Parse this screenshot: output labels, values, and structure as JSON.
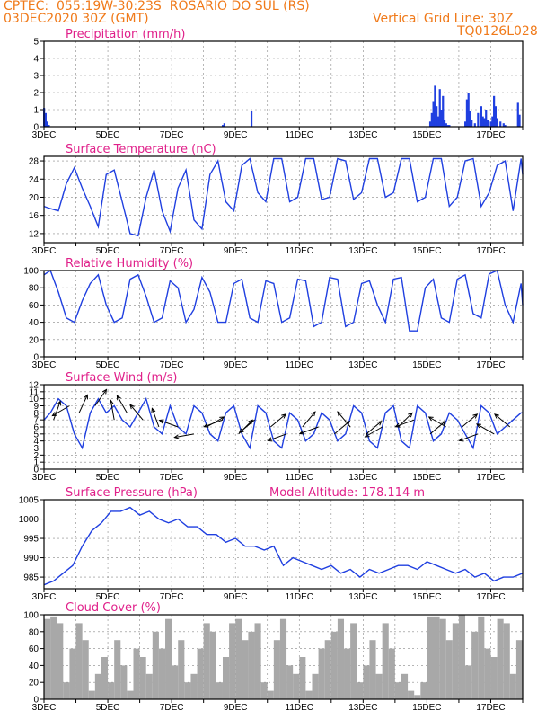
{
  "header": {
    "line1": "CPTEC:  055:19W-30:23S  ROSARIO DO SUL (RS)",
    "line2": "03DEC2020 30Z (GMT)",
    "grid_note": "Vertical Grid Line: 30Z",
    "code": "TQ0126L028"
  },
  "colors": {
    "header": "#f07a1a",
    "title": "#e0208a",
    "line": "#1f3fe0",
    "bar": "#1f3fe0",
    "cloud": "#a8a8a8"
  },
  "x_axis": {
    "labels": [
      "3DEC",
      "5DEC",
      "7DEC",
      "9DEC",
      "11DEC",
      "13DEC",
      "15DEC",
      "17DEC"
    ],
    "start_day": 3,
    "end_day": 18
  },
  "chart_data": [
    {
      "id": "precip",
      "type": "bar",
      "title": "Precipitation (mm/h)",
      "ylim": [
        0,
        5
      ],
      "yticks": [
        0,
        1,
        2,
        3,
        4,
        5
      ],
      "x": [
        3.0,
        3.05,
        3.1,
        3.15,
        8.6,
        8.65,
        9.5,
        15.1,
        15.15,
        15.2,
        15.25,
        15.3,
        15.35,
        15.4,
        15.45,
        15.5,
        15.55,
        15.6,
        15.65,
        15.7,
        16.2,
        16.25,
        16.3,
        16.35,
        16.4,
        16.5,
        16.6,
        16.7,
        16.75,
        16.8,
        16.85,
        16.9,
        17.0,
        17.05,
        17.1,
        17.15,
        17.2,
        17.3,
        17.4,
        17.45,
        17.85,
        17.9
      ],
      "values": [
        1.1,
        0.8,
        0.3,
        0.1,
        0.1,
        0.2,
        0.9,
        0.3,
        0.8,
        1.5,
        2.4,
        1.2,
        0.6,
        2.2,
        1.0,
        1.8,
        0.4,
        0.2,
        0.1,
        0.1,
        0.3,
        1.6,
        2.0,
        0.9,
        0.4,
        0.2,
        0.8,
        1.2,
        0.6,
        0.5,
        1.0,
        0.4,
        0.3,
        0.6,
        1.8,
        1.2,
        0.5,
        0.3,
        0.2,
        0.1,
        1.4,
        0.7
      ]
    },
    {
      "id": "temp",
      "type": "line",
      "title": "Surface Temperature (nC)",
      "ylim": [
        10,
        29
      ],
      "yticks": [
        12,
        16,
        20,
        24,
        28
      ],
      "x": [
        3.0,
        3.2,
        3.45,
        3.7,
        3.95,
        4.2,
        4.45,
        4.7,
        4.95,
        5.2,
        5.45,
        5.7,
        5.95,
        6.2,
        6.45,
        6.7,
        6.95,
        7.2,
        7.45,
        7.7,
        7.95,
        8.2,
        8.45,
        8.7,
        8.95,
        9.2,
        9.45,
        9.7,
        9.95,
        10.2,
        10.45,
        10.7,
        10.95,
        11.2,
        11.45,
        11.7,
        11.95,
        12.2,
        12.45,
        12.7,
        12.95,
        13.2,
        13.45,
        13.7,
        13.95,
        14.2,
        14.45,
        14.7,
        14.95,
        15.2,
        15.45,
        15.7,
        15.95,
        16.2,
        16.45,
        16.7,
        16.95,
        17.2,
        17.45,
        17.7,
        17.95,
        18.0
      ],
      "values": [
        18,
        17.5,
        17,
        23,
        26.5,
        22,
        18,
        13.5,
        25,
        26,
        19,
        12,
        11.5,
        20,
        26,
        17,
        12.5,
        22,
        26,
        15,
        13,
        25,
        28,
        19,
        17,
        27,
        28.5,
        21,
        19,
        28.5,
        28.5,
        19,
        20,
        28.5,
        28.5,
        19.5,
        20,
        28.5,
        28,
        19.5,
        21,
        28.5,
        28.5,
        20,
        21,
        28.5,
        28.5,
        19,
        20,
        28.5,
        28.5,
        18,
        20,
        28,
        28.5,
        18,
        21,
        27,
        28,
        17,
        28.5,
        25
      ]
    },
    {
      "id": "rh",
      "type": "line",
      "title": "Relative Humidity (%)",
      "ylim": [
        0,
        100
      ],
      "yticks": [
        0,
        20,
        40,
        60,
        80,
        100
      ],
      "x": [
        3.0,
        3.2,
        3.45,
        3.7,
        3.95,
        4.2,
        4.45,
        4.7,
        4.95,
        5.2,
        5.45,
        5.7,
        5.95,
        6.2,
        6.45,
        6.7,
        6.95,
        7.2,
        7.45,
        7.7,
        7.95,
        8.2,
        8.45,
        8.7,
        8.95,
        9.2,
        9.45,
        9.7,
        9.95,
        10.2,
        10.45,
        10.7,
        10.95,
        11.2,
        11.45,
        11.7,
        11.95,
        12.2,
        12.45,
        12.7,
        12.95,
        13.2,
        13.45,
        13.7,
        13.95,
        14.2,
        14.45,
        14.7,
        14.95,
        15.2,
        15.45,
        15.7,
        15.95,
        16.2,
        16.45,
        16.7,
        16.95,
        17.2,
        17.45,
        17.7,
        17.95,
        18.0
      ],
      "values": [
        95,
        100,
        75,
        45,
        40,
        65,
        85,
        95,
        60,
        40,
        45,
        90,
        95,
        70,
        40,
        45,
        88,
        80,
        40,
        55,
        92,
        75,
        40,
        40,
        85,
        90,
        45,
        40,
        88,
        85,
        40,
        45,
        90,
        88,
        35,
        40,
        92,
        90,
        35,
        40,
        85,
        88,
        60,
        40,
        90,
        92,
        30,
        30,
        80,
        90,
        45,
        40,
        90,
        95,
        50,
        45,
        96,
        100,
        60,
        40,
        85,
        60
      ]
    },
    {
      "id": "wind",
      "type": "line",
      "title": "Surface Wind (m/s)",
      "ylim": [
        0,
        12
      ],
      "yticks": [
        0,
        1,
        2,
        3,
        4,
        5,
        6,
        7,
        8,
        9,
        10,
        11,
        12
      ],
      "x": [
        3.0,
        3.2,
        3.45,
        3.7,
        3.95,
        4.2,
        4.45,
        4.7,
        4.95,
        5.2,
        5.45,
        5.7,
        5.95,
        6.2,
        6.45,
        6.7,
        6.95,
        7.2,
        7.45,
        7.7,
        7.95,
        8.2,
        8.45,
        8.7,
        8.95,
        9.2,
        9.45,
        9.7,
        9.95,
        10.2,
        10.45,
        10.7,
        10.95,
        11.2,
        11.45,
        11.7,
        11.95,
        12.2,
        12.45,
        12.7,
        12.95,
        13.2,
        13.45,
        13.7,
        13.95,
        14.2,
        14.45,
        14.7,
        14.95,
        15.2,
        15.45,
        15.7,
        15.95,
        16.2,
        16.45,
        16.7,
        16.95,
        17.2,
        17.45,
        17.7,
        17.95,
        18.0
      ],
      "values": [
        7,
        8,
        10,
        9,
        5,
        3,
        8,
        10,
        8,
        9,
        7,
        6,
        8,
        10,
        6,
        5,
        9,
        6,
        5,
        9,
        8,
        5,
        4,
        8,
        9,
        5,
        3,
        9,
        8,
        4,
        3,
        8,
        7,
        4,
        5,
        8,
        7,
        4,
        5,
        9,
        8,
        4,
        3,
        8,
        9,
        4,
        3,
        9,
        8,
        4,
        5,
        8,
        7,
        5,
        3,
        9,
        8,
        5,
        6,
        7,
        8,
        8
      ],
      "arrows": [
        {
          "day": 3.3,
          "speed": 7,
          "dir": 70
        },
        {
          "day": 3.8,
          "speed": 9,
          "dir": 210
        },
        {
          "day": 4.1,
          "speed": 8,
          "dir": 65
        },
        {
          "day": 4.6,
          "speed": 9,
          "dir": 55
        },
        {
          "day": 5.2,
          "speed": 7,
          "dir": 100
        },
        {
          "day": 5.6,
          "speed": 8,
          "dir": 120
        },
        {
          "day": 6.1,
          "speed": 7,
          "dir": 130
        },
        {
          "day": 6.6,
          "speed": 6,
          "dir": 110
        },
        {
          "day": 7.2,
          "speed": 6,
          "dir": 160
        },
        {
          "day": 7.7,
          "speed": 5,
          "dir": 190
        },
        {
          "day": 8.1,
          "speed": 6,
          "dir": 30
        },
        {
          "day": 8.6,
          "speed": 7,
          "dir": 200
        },
        {
          "day": 9.1,
          "speed": 5,
          "dir": 45
        },
        {
          "day": 9.6,
          "speed": 7,
          "dir": 220
        },
        {
          "day": 10.1,
          "speed": 6,
          "dir": 40
        },
        {
          "day": 10.6,
          "speed": 5,
          "dir": 200
        },
        {
          "day": 11.1,
          "speed": 6,
          "dir": 50
        },
        {
          "day": 11.6,
          "speed": 6,
          "dir": 200
        },
        {
          "day": 12.1,
          "speed": 5,
          "dir": 40
        },
        {
          "day": 12.6,
          "speed": 6,
          "dir": 130
        },
        {
          "day": 13.1,
          "speed": 5,
          "dir": 40
        },
        {
          "day": 13.6,
          "speed": 6,
          "dir": 210
        },
        {
          "day": 14.1,
          "speed": 6,
          "dir": 45
        },
        {
          "day": 14.6,
          "speed": 7,
          "dir": 200
        },
        {
          "day": 15.1,
          "speed": 5,
          "dir": 40
        },
        {
          "day": 15.6,
          "speed": 6,
          "dir": 150
        },
        {
          "day": 16.1,
          "speed": 6,
          "dir": 40
        },
        {
          "day": 16.6,
          "speed": 5,
          "dir": 200
        },
        {
          "day": 17.1,
          "speed": 5,
          "dir": 150
        },
        {
          "day": 17.6,
          "speed": 6,
          "dir": 140
        }
      ]
    },
    {
      "id": "pres",
      "type": "line",
      "title": "Surface Pressure (hPa)",
      "note": "Model Altitude: 178.114 m",
      "ylim": [
        982,
        1005
      ],
      "yticks": [
        985,
        990,
        995,
        1000,
        1005
      ],
      "x": [
        3.0,
        3.3,
        3.6,
        3.9,
        4.2,
        4.5,
        4.8,
        5.1,
        5.4,
        5.7,
        6.0,
        6.3,
        6.6,
        6.9,
        7.2,
        7.5,
        7.8,
        8.1,
        8.4,
        8.7,
        9.0,
        9.3,
        9.6,
        9.9,
        10.2,
        10.5,
        10.8,
        11.1,
        11.4,
        11.7,
        12.0,
        12.3,
        12.6,
        12.9,
        13.2,
        13.5,
        13.8,
        14.1,
        14.4,
        14.7,
        15.0,
        15.3,
        15.6,
        15.9,
        16.2,
        16.5,
        16.8,
        17.1,
        17.4,
        17.7,
        18.0
      ],
      "values": [
        983,
        984,
        986,
        988,
        993,
        997,
        999,
        1002,
        1002,
        1003,
        1001,
        1002,
        1000,
        999,
        1000,
        998,
        998,
        996,
        996,
        994,
        995,
        993,
        993,
        992,
        993,
        988,
        990,
        989,
        988,
        987,
        988,
        986,
        987,
        985,
        987,
        986,
        987,
        988,
        988,
        987,
        989,
        988,
        987,
        986,
        987,
        985,
        986,
        984,
        985,
        985,
        986
      ]
    },
    {
      "id": "cloud",
      "type": "area",
      "title": "Cloud Cover (%)",
      "ylim": [
        0,
        100
      ],
      "yticks": [
        0,
        20,
        40,
        60,
        80,
        100
      ],
      "x": [
        3.0,
        3.2,
        3.4,
        3.6,
        3.8,
        4.0,
        4.2,
        4.4,
        4.6,
        4.8,
        5.0,
        5.2,
        5.4,
        5.6,
        5.8,
        6.0,
        6.2,
        6.4,
        6.6,
        6.8,
        7.0,
        7.2,
        7.4,
        7.6,
        7.8,
        8.0,
        8.2,
        8.4,
        8.6,
        8.8,
        9.0,
        9.2,
        9.4,
        9.6,
        9.8,
        10.0,
        10.2,
        10.4,
        10.6,
        10.8,
        11.0,
        11.2,
        11.4,
        11.6,
        11.8,
        12.0,
        12.2,
        12.4,
        12.6,
        12.8,
        13.0,
        13.2,
        13.4,
        13.6,
        13.8,
        14.0,
        14.2,
        14.4,
        14.6,
        14.8,
        15.0,
        15.2,
        15.4,
        15.6,
        15.8,
        16.0,
        16.2,
        16.4,
        16.6,
        16.8,
        17.0,
        17.2,
        17.4,
        17.6,
        17.8,
        18.0
      ],
      "values": [
        95,
        98,
        90,
        20,
        60,
        90,
        70,
        10,
        30,
        50,
        20,
        70,
        40,
        10,
        60,
        50,
        30,
        80,
        60,
        95,
        40,
        70,
        20,
        30,
        60,
        90,
        80,
        20,
        50,
        90,
        95,
        70,
        80,
        90,
        20,
        10,
        70,
        95,
        40,
        30,
        50,
        10,
        30,
        60,
        70,
        80,
        95,
        60,
        90,
        20,
        40,
        70,
        30,
        90,
        60,
        20,
        30,
        10,
        5,
        20,
        98,
        98,
        95,
        70,
        90,
        100,
        40,
        80,
        98,
        60,
        50,
        95,
        90,
        30,
        70,
        90
      ]
    }
  ]
}
